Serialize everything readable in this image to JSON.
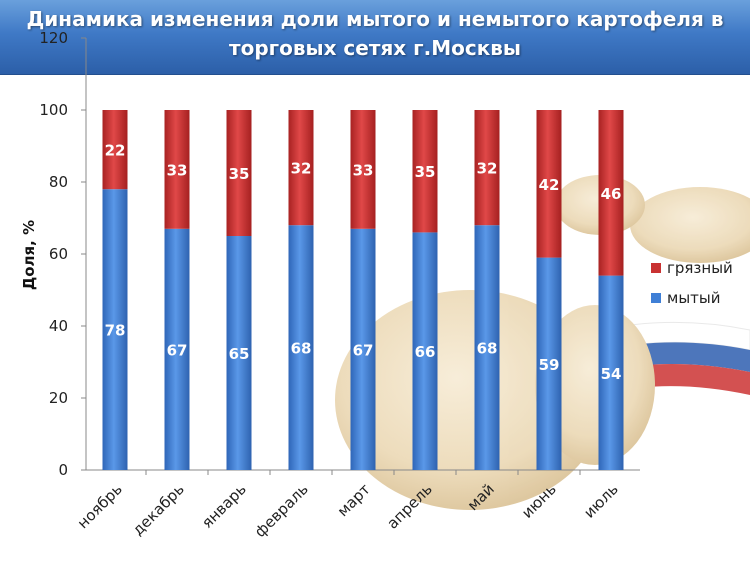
{
  "chart_data": {
    "type": "bar",
    "stacked": true,
    "title": "Динамика изменения доли мытого и немытого картофеля в торговых сетях г.Москвы",
    "xlabel": "",
    "ylabel": "Доля, %",
    "ylim": [
      0,
      120
    ],
    "yticks": [
      "0",
      "20",
      "40",
      "60",
      "80",
      "100",
      "120"
    ],
    "categories": [
      "ноябрь",
      "декабрь",
      "январь",
      "февраль",
      "март",
      "апрель",
      "май",
      "июнь",
      "июль"
    ],
    "series": [
      {
        "name": "мытый",
        "values": [
          78,
          67,
          65,
          68,
          67,
          66,
          68,
          59,
          54
        ],
        "color": "#3f7fd6"
      },
      {
        "name": "грязный",
        "values": [
          22,
          33,
          35,
          32,
          33,
          35,
          32,
          42,
          46
        ],
        "color": "#c93232"
      }
    ],
    "legend": "right",
    "grid": false
  }
}
